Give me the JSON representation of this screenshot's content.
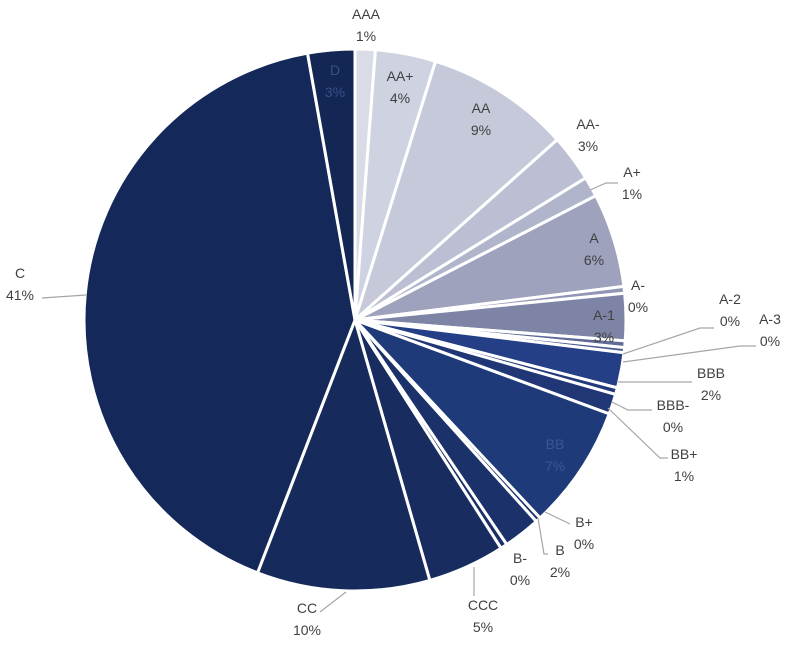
{
  "chart_data": {
    "type": "pie",
    "title": "",
    "legend": "none",
    "slices": [
      {
        "label": "AAA",
        "pct_label": "1%",
        "value": 1.2,
        "color": "#d9dce6",
        "text_color": "#404040",
        "inside": false
      },
      {
        "label": "AA+",
        "pct_label": "4%",
        "value": 3.6,
        "color": "#cfd2e0",
        "text_color": "#404040",
        "inside": true
      },
      {
        "label": "AA",
        "pct_label": "9%",
        "value": 8.6,
        "color": "#c6c9da",
        "text_color": "#404040",
        "inside": true
      },
      {
        "label": "AA-",
        "pct_label": "3%",
        "value": 2.8,
        "color": "#bcbfd3",
        "text_color": "#404040",
        "inside": false
      },
      {
        "label": "A+",
        "pct_label": "1%",
        "value": 1.2,
        "color": "#b1b5cc",
        "text_color": "#404040",
        "inside": false
      },
      {
        "label": "A",
        "pct_label": "6%",
        "value": 5.6,
        "color": "#9ea2bd",
        "text_color": "#404040",
        "inside": true
      },
      {
        "label": "A-",
        "pct_label": "0%",
        "value": 0.4,
        "color": "#9296b5",
        "text_color": "#404040",
        "inside": false
      },
      {
        "label": "A-1",
        "pct_label": "3%",
        "value": 2.8,
        "color": "#7e84a6",
        "text_color": "#404040",
        "inside": true
      },
      {
        "label": "A-2",
        "pct_label": "0%",
        "value": 0.4,
        "color": "#5f6b96",
        "text_color": "#404040",
        "inside": false
      },
      {
        "label": "A-3",
        "pct_label": "0%",
        "value": 0.3,
        "color": "#4a5a8e",
        "text_color": "#404040",
        "inside": false
      },
      {
        "label": "BBB",
        "pct_label": "2%",
        "value": 2.1,
        "color": "#243f86",
        "text_color": "#404040",
        "inside": false
      },
      {
        "label": "BBB-",
        "pct_label": "0%",
        "value": 0.4,
        "color": "#22397b",
        "text_color": "#404040",
        "inside": false
      },
      {
        "label": "BB+",
        "pct_label": "1%",
        "value": 1.2,
        "color": "#213775",
        "text_color": "#404040",
        "inside": false
      },
      {
        "label": "BB",
        "pct_label": "7%",
        "value": 7.4,
        "color": "#1e3a78",
        "text_color": "#3a5696",
        "inside": true
      },
      {
        "label": "B+",
        "pct_label": "0%",
        "value": 0.3,
        "color": "#1c3470",
        "text_color": "#404040",
        "inside": false
      },
      {
        "label": "B",
        "pct_label": "2%",
        "value": 2.2,
        "color": "#1b316a",
        "text_color": "#404040",
        "inside": false
      },
      {
        "label": "B-",
        "pct_label": "0%",
        "value": 0.4,
        "color": "#1a2f66",
        "text_color": "#404040",
        "inside": false
      },
      {
        "label": "CCC",
        "pct_label": "5%",
        "value": 4.6,
        "color": "#182c60",
        "text_color": "#404040",
        "inside": false
      },
      {
        "label": "CC",
        "pct_label": "10%",
        "value": 10.3,
        "color": "#162a5c",
        "text_color": "#404040",
        "inside": false
      },
      {
        "label": "C",
        "pct_label": "41%",
        "value": 41.3,
        "color": "#14285a",
        "text_color": "#404040",
        "inside": false
      },
      {
        "label": "D",
        "pct_label": "3%",
        "value": 2.8,
        "color": "#132654",
        "text_color": "#3a4f85",
        "inside": true
      }
    ]
  }
}
